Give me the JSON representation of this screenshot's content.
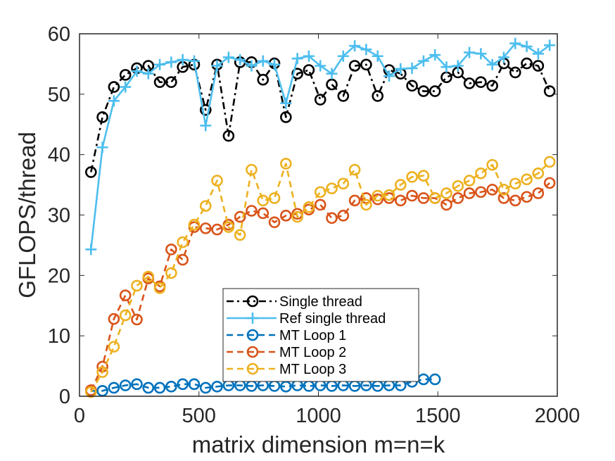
{
  "chart_data": {
    "type": "line",
    "title": "",
    "xlabel": "matrix dimension m=n=k",
    "ylabel": "GFLOPS/thread",
    "xlim": [
      0,
      2000
    ],
    "ylim": [
      0,
      60
    ],
    "xticks": [
      0,
      500,
      1000,
      1500,
      2000
    ],
    "yticks": [
      0,
      10,
      20,
      30,
      40,
      50,
      60
    ],
    "xtick_labels": [
      "0",
      "500",
      "1000",
      "1500",
      "2000"
    ],
    "ytick_labels": [
      "0",
      "10",
      "20",
      "30",
      "40",
      "50",
      "60"
    ],
    "grid": false,
    "legend": {
      "position": "bottom-center"
    },
    "x": [
      48,
      96,
      144,
      192,
      240,
      288,
      336,
      384,
      432,
      480,
      528,
      576,
      624,
      672,
      720,
      768,
      816,
      864,
      912,
      960,
      1008,
      1056,
      1104,
      1152,
      1200,
      1248,
      1296,
      1344,
      1392,
      1440,
      1488,
      1536,
      1584,
      1632,
      1680,
      1728,
      1776,
      1824,
      1872,
      1920,
      1968
    ],
    "series": [
      {
        "name": "Single thread",
        "color": "#000000",
        "line_style": "dash-dot",
        "marker": "circle",
        "values": [
          37.1,
          46.2,
          51.2,
          53.2,
          54.3,
          54.7,
          52.0,
          52.0,
          54.5,
          54.9,
          47.4,
          54.9,
          43.1,
          55.3,
          55.3,
          52.4,
          55.1,
          46.2,
          53.4,
          54.0,
          49.1,
          51.6,
          49.7,
          54.7,
          54.9,
          49.7,
          54.0,
          53.4,
          51.4,
          50.5,
          50.5,
          52.8,
          53.6,
          51.8,
          52.0,
          51.4,
          55.1,
          53.6,
          55.1,
          54.7,
          50.5
        ]
      },
      {
        "name": "Ref single thread",
        "color": "#4DBEEE",
        "line_style": "solid",
        "marker": "plus",
        "values": [
          24.3,
          41.2,
          48.9,
          51.2,
          53.8,
          53.4,
          54.9,
          55.3,
          55.7,
          55.5,
          44.8,
          54.7,
          56.1,
          55.7,
          54.7,
          55.5,
          54.9,
          48.5,
          55.9,
          56.3,
          54.7,
          53.4,
          56.3,
          58.0,
          57.4,
          56.3,
          53.0,
          54.2,
          54.3,
          55.5,
          56.5,
          54.5,
          54.7,
          56.9,
          56.7,
          54.9,
          56.1,
          58.4,
          57.9,
          56.7,
          58.1
        ]
      },
      {
        "name": "MT Loop 1",
        "color": "#0072BD",
        "line_style": "dashed",
        "marker": "circle",
        "values": [
          0.9,
          0.9,
          1.4,
          1.8,
          2.0,
          1.4,
          1.4,
          1.6,
          2.0,
          2.0,
          1.4,
          1.6,
          1.8,
          1.8,
          1.7,
          1.8,
          1.7,
          1.6,
          1.8,
          1.7,
          1.8,
          1.7,
          1.8,
          1.7,
          1.8,
          1.7,
          1.8,
          1.8,
          2.4,
          2.8,
          2.8
        ]
      },
      {
        "name": "MT Loop 2",
        "color": "#D95319",
        "line_style": "dashed",
        "marker": "circle",
        "values": [
          1.0,
          4.9,
          12.8,
          16.7,
          12.7,
          19.5,
          18.2,
          24.3,
          22.6,
          28.0,
          27.8,
          27.6,
          28.4,
          29.7,
          30.7,
          30.3,
          28.8,
          29.9,
          30.2,
          30.9,
          31.7,
          29.5,
          29.9,
          32.4,
          32.8,
          32.6,
          32.8,
          32.4,
          33.2,
          32.8,
          32.8,
          31.7,
          32.8,
          33.6,
          33.8,
          34.2,
          32.8,
          32.4,
          33.0,
          33.6,
          35.3
        ]
      },
      {
        "name": "MT Loop 3",
        "color": "#EDB120",
        "line_style": "dashed",
        "marker": "circle",
        "values": [
          0.7,
          4.0,
          8.2,
          13.4,
          18.3,
          19.8,
          17.9,
          20.4,
          25.5,
          28.4,
          31.5,
          35.7,
          28.0,
          26.7,
          37.5,
          32.4,
          32.8,
          38.5,
          29.7,
          31.3,
          33.8,
          34.4,
          35.2,
          37.5,
          31.7,
          33.2,
          33.3,
          35.0,
          36.3,
          36.5,
          32.8,
          33.6,
          34.8,
          35.7,
          36.9,
          38.3,
          34.2,
          35.2,
          35.9,
          36.9,
          38.8
        ]
      }
    ]
  }
}
